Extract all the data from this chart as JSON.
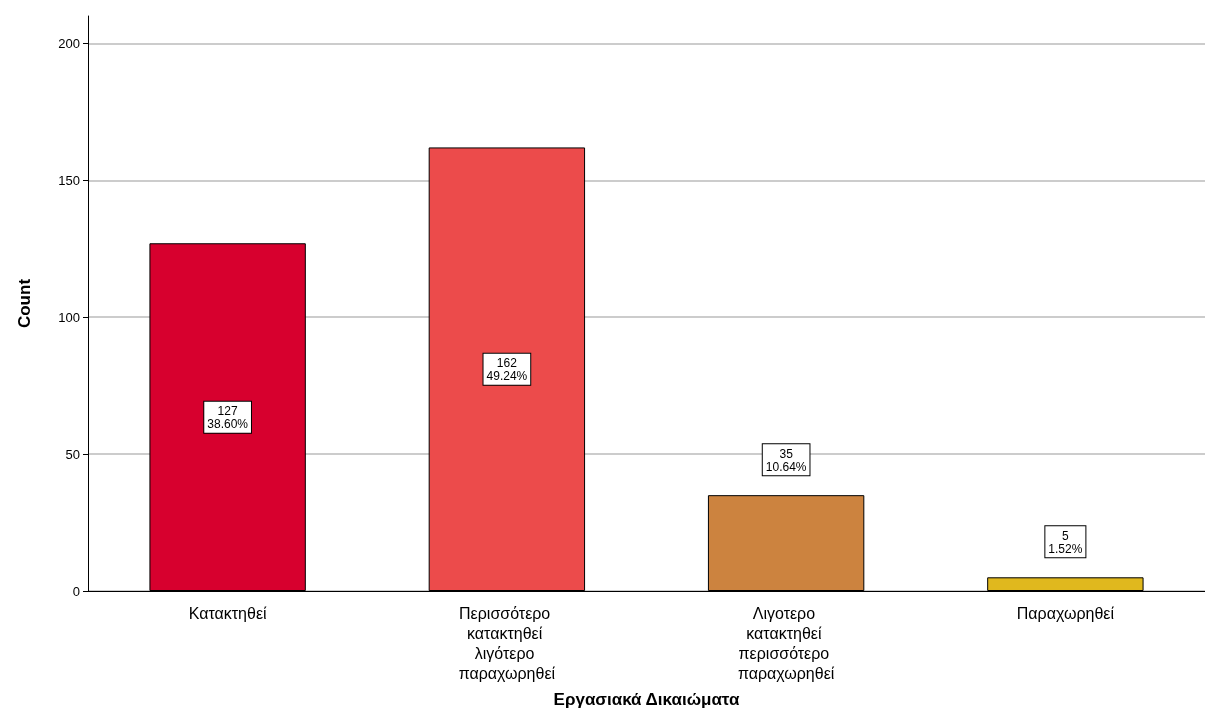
{
  "chart_data": {
    "type": "bar",
    "categories": [
      "Κατακτηθεί",
      "Περισσότερο κατακτηθεί λιγότερο παραχωρηθεί",
      "Λιγοτερο κατακτηθεί περισσότερο παραχωρηθεί",
      "Παραχωρηθεί"
    ],
    "values": [
      127,
      162,
      35,
      5
    ],
    "colors": [
      "#d7002e",
      "#ec4b4b",
      "#cc833f",
      "#e0b81e"
    ],
    "value_labels": [
      "127\n38.60%",
      "162\n49.24%",
      "35\n10.64%",
      "5\n1.52%"
    ],
    "xlabel": "Εργασιακά Δικαιώματα",
    "ylabel": "Count",
    "ylim": [
      0,
      210
    ],
    "yticks": [
      0,
      50,
      100,
      150,
      200
    ],
    "grid": "y"
  }
}
